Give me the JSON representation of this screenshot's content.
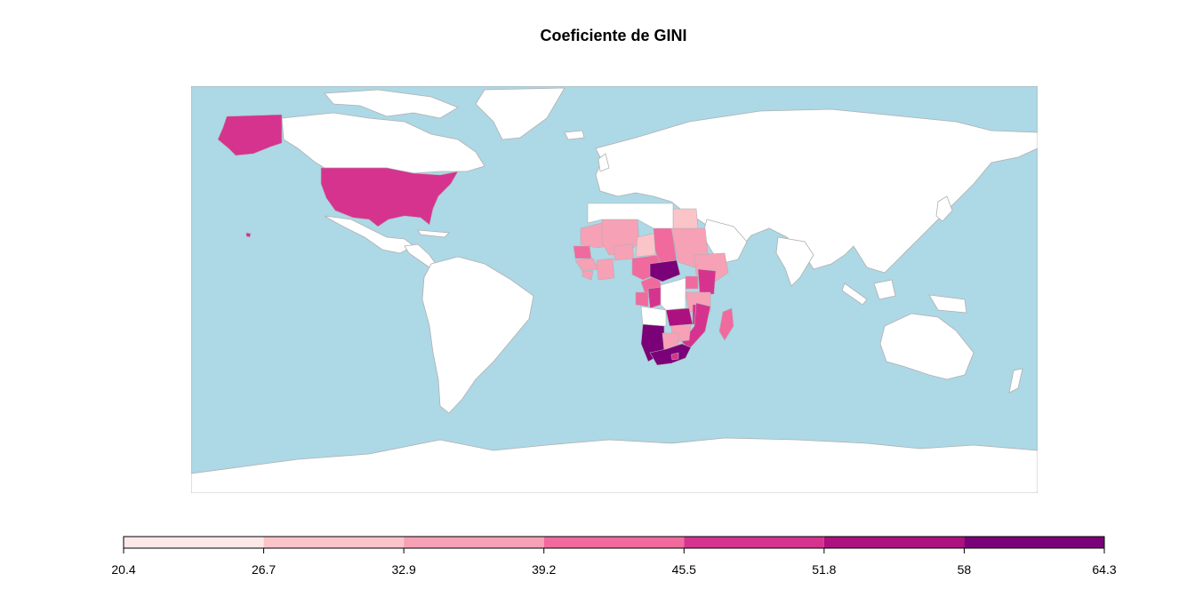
{
  "title": "Coeficiente de GINI",
  "colors": {
    "ocean": "#add8e6",
    "no_data": "#ffffff",
    "border": "#b0b0b0"
  },
  "legend": {
    "breaks": [
      "20.4",
      "26.7",
      "32.9",
      "39.2",
      "45.5",
      "51.8",
      "58",
      "64.3"
    ],
    "colors": [
      "#fde8e8",
      "#fbc4c9",
      "#f7a1b6",
      "#f06a9e",
      "#d6338f",
      "#ad1180",
      "#7a0177"
    ]
  },
  "regions": {
    "alaska": "#d6338f",
    "usa": "#d6338f",
    "hawaii": "#d6338f",
    "mauritania": "#f7a1b6",
    "mali": "#f7a1b6",
    "senegal": "#f06a9e",
    "guinea": "#f7a1b6",
    "sierra_leone": "#f7a1b6",
    "cote_divoire": "#f7a1b6",
    "burkina_faso": "#f7a1b6",
    "niger": "#fbc4c9",
    "nigeria": "#f06a9e",
    "cameroon": "#f06a9e",
    "chad": "#f06a9e",
    "sudan": "#f7a1b6",
    "egypt": "#fbc4c9",
    "ethiopia": "#f7a1b6",
    "car": "#7a0177",
    "gabon": "#f06a9e",
    "congo": "#d6338f",
    "uganda": "#f06a9e",
    "kenya": "#d6338f",
    "tanzania": "#f7a1b6",
    "zambia": "#ad1180",
    "malawi": "#d6338f",
    "mozambique": "#d6338f",
    "zimbabwe": "#f7a1b6",
    "namibia": "#7a0177",
    "botswana": "#f7a1b6",
    "south_africa": "#7a0177",
    "lesotho": "#d6338f",
    "madagascar": "#f06a9e"
  }
}
